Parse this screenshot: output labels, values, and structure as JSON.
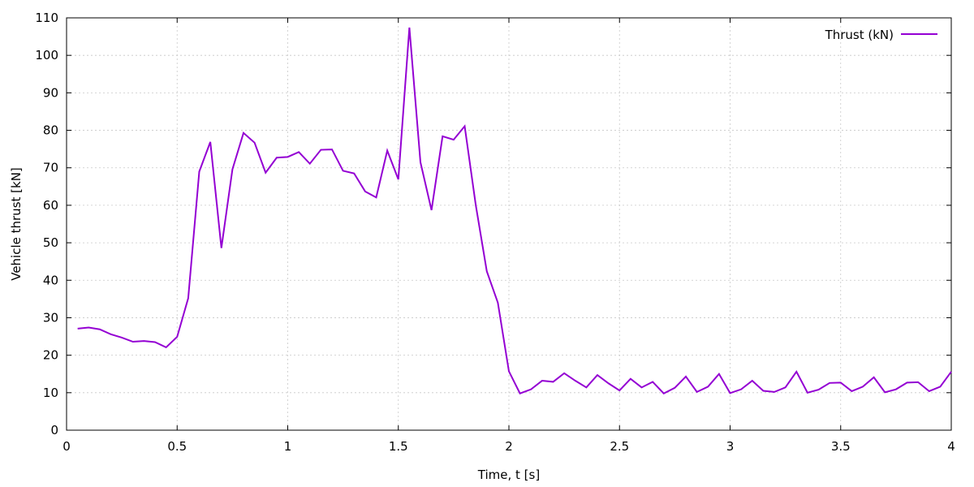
{
  "chart_data": {
    "type": "line",
    "title": "",
    "xlabel": "Time, t [s]",
    "ylabel": "Vehicle thrust [kN]",
    "xlim": [
      0,
      4
    ],
    "ylim": [
      0,
      110
    ],
    "xticks": [
      0,
      0.5,
      1,
      1.5,
      2,
      2.5,
      3,
      3.5,
      4
    ],
    "xtick_labels": [
      "0",
      "0.5",
      "1",
      "1.5",
      "2",
      "2.5",
      "3",
      "3.5",
      "4"
    ],
    "yticks": [
      0,
      10,
      20,
      30,
      40,
      50,
      60,
      70,
      80,
      90,
      100,
      110
    ],
    "ytick_labels": [
      "0",
      "10",
      "20",
      "30",
      "40",
      "50",
      "60",
      "70",
      "80",
      "90",
      "100",
      "110"
    ],
    "grid": true,
    "legend_position": "top-right",
    "series": [
      {
        "name": "Thrust (kN)",
        "color": "#9400d3",
        "x": [
          0.05,
          0.1,
          0.15,
          0.2,
          0.25,
          0.3,
          0.35,
          0.4,
          0.45,
          0.5,
          0.55,
          0.6,
          0.65,
          0.7,
          0.75,
          0.8,
          0.85,
          0.9,
          0.95,
          1.0,
          1.05,
          1.1,
          1.15,
          1.2,
          1.25,
          1.3,
          1.35,
          1.4,
          1.45,
          1.5,
          1.55,
          1.6,
          1.65,
          1.7,
          1.75,
          1.8,
          1.85,
          1.9,
          1.95,
          2.0,
          2.05,
          2.1,
          2.15,
          2.2,
          2.25,
          2.3,
          2.35,
          2.4,
          2.45,
          2.5,
          2.55,
          2.6,
          2.65,
          2.7,
          2.75,
          2.8,
          2.85,
          2.9,
          2.95,
          3.0,
          3.05,
          3.1,
          3.15,
          3.2,
          3.25,
          3.3,
          3.35,
          3.4,
          3.45,
          3.5,
          3.55,
          3.6,
          3.65,
          3.7,
          3.75,
          3.8,
          3.85,
          3.9,
          3.95,
          4.0
        ],
        "y": [
          27.1,
          27.4,
          26.9,
          25.6,
          24.7,
          23.6,
          23.8,
          23.5,
          22.1,
          24.9,
          35.2,
          69.0,
          76.9,
          48.6,
          69.6,
          79.3,
          76.7,
          68.7,
          72.7,
          72.9,
          74.2,
          71.1,
          74.8,
          74.9,
          69.2,
          68.5,
          63.7,
          62.1,
          74.6,
          66.9,
          107.4,
          71.5,
          58.7,
          78.4,
          77.5,
          81.1,
          60.1,
          42.4,
          34.0,
          15.7,
          9.8,
          10.9,
          13.2,
          12.9,
          15.2,
          13.2,
          11.4,
          14.7,
          12.5,
          10.6,
          13.7,
          11.4,
          12.9,
          9.8,
          11.3,
          14.3,
          10.2,
          11.6,
          15.0,
          9.9,
          10.9,
          13.2,
          10.5,
          10.2,
          11.4,
          15.6,
          10.0,
          10.8,
          12.6,
          12.7,
          10.4,
          11.6,
          14.1,
          10.1,
          10.9,
          12.7,
          12.8,
          10.4,
          11.6,
          15.6
        ]
      }
    ]
  }
}
